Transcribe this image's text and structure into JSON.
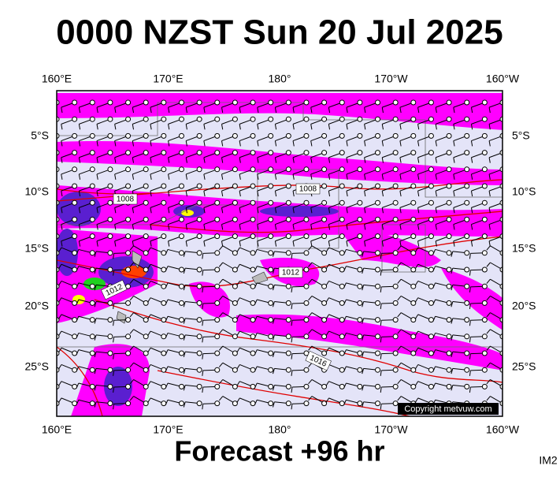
{
  "header": {
    "title": "0000 NZST Sun 20 Jul 2025"
  },
  "footer": {
    "forecast": "Forecast +96 hr",
    "code": "IM2"
  },
  "map": {
    "copyright": "Copyright metvuw.com",
    "lon_labels": [
      "160°E",
      "170°E",
      "180°",
      "170°W",
      "160°W"
    ],
    "lat_labels": [
      "5°S",
      "10°S",
      "15°S",
      "20°S",
      "25°S"
    ],
    "isobar_labels": [
      "1008",
      "1008",
      "1012",
      "1012",
      "1016"
    ]
  }
}
